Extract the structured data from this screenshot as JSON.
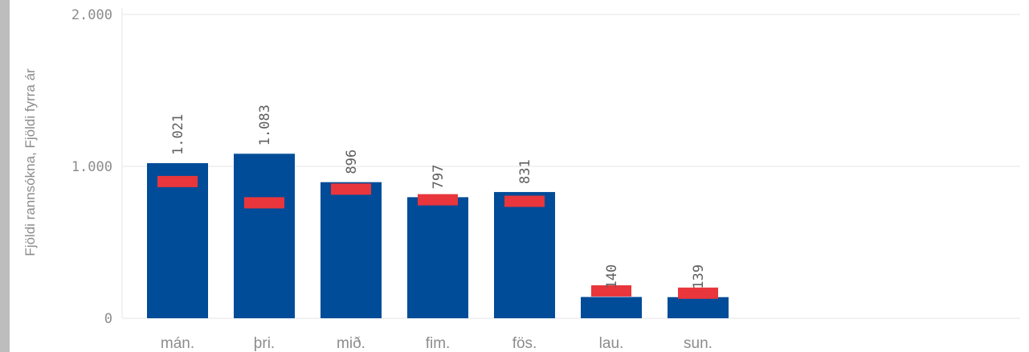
{
  "chart_data": {
    "type": "bar",
    "ylabel": "Fjöldi rannsókna, Fjöldi fyrra ár",
    "ylim": [
      0,
      2000
    ],
    "yticks": [
      {
        "value": 0,
        "label": "0"
      },
      {
        "value": 1000,
        "label": "1.000"
      },
      {
        "value": 2000,
        "label": "2.000"
      }
    ],
    "grid": true,
    "categories": [
      "mán.",
      "þri.",
      "mið.",
      "fim.",
      "fös.",
      "lau.",
      "sun."
    ],
    "series": [
      {
        "kind": "bar",
        "values": [
          1021,
          1083,
          896,
          797,
          831,
          140,
          139
        ],
        "labels": [
          "1.021",
          "1.083",
          "896",
          "797",
          "831",
          "140",
          "139"
        ],
        "color": "#004c98"
      },
      {
        "kind": "marker",
        "values": [
          900,
          760,
          850,
          780,
          770,
          180,
          165
        ],
        "color": "#e8363c"
      }
    ]
  }
}
